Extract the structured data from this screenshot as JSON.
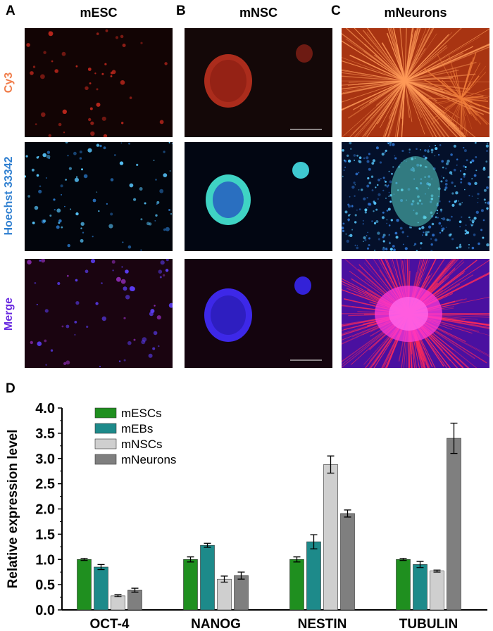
{
  "panels": {
    "A": {
      "letter": "A",
      "title": "mESC"
    },
    "B": {
      "letter": "B",
      "title": "mNSC"
    },
    "C": {
      "letter": "C",
      "title": "mNeurons"
    },
    "D": {
      "letter": "D"
    }
  },
  "row_labels": {
    "cy3": "Cy3",
    "hoechst": "Hoechst 33342",
    "merge": "Merge"
  },
  "colors": {
    "cy3": "#f07d4b",
    "hoechst": "#2f7fd0",
    "merge": "#6a2be0",
    "mESCs": "#1f8f1f",
    "mEBs": "#1d8a8a",
    "mNSCs": "#cfcfcf",
    "mNeurons": "#7f7f7f"
  },
  "chart_data": {
    "type": "bar",
    "categories": [
      "OCT-4",
      "NANOG",
      "NESTIN",
      "TUBULIN"
    ],
    "ylabel": "Relative expression level",
    "xlabel": "",
    "ylim": [
      0,
      4.0
    ],
    "yticks": [
      "0.0",
      "0.5",
      "1.0",
      "1.5",
      "2.0",
      "2.5",
      "3.0",
      "3.5",
      "4.0"
    ],
    "legend_position": "top-left",
    "series": [
      {
        "name": "mESCs",
        "values": [
          1.0,
          1.0,
          1.0,
          1.0
        ],
        "errors": [
          0.02,
          0.05,
          0.05,
          0.02
        ]
      },
      {
        "name": "mEBs",
        "values": [
          0.85,
          1.28,
          1.35,
          0.9
        ],
        "errors": [
          0.05,
          0.04,
          0.14,
          0.06
        ]
      },
      {
        "name": "mNSCs",
        "values": [
          0.28,
          0.61,
          2.88,
          0.77
        ],
        "errors": [
          0.02,
          0.06,
          0.17,
          0.02
        ]
      },
      {
        "name": "mNeurons",
        "values": [
          0.39,
          0.68,
          1.91,
          3.4
        ],
        "errors": [
          0.04,
          0.07,
          0.07,
          0.3
        ]
      }
    ]
  }
}
